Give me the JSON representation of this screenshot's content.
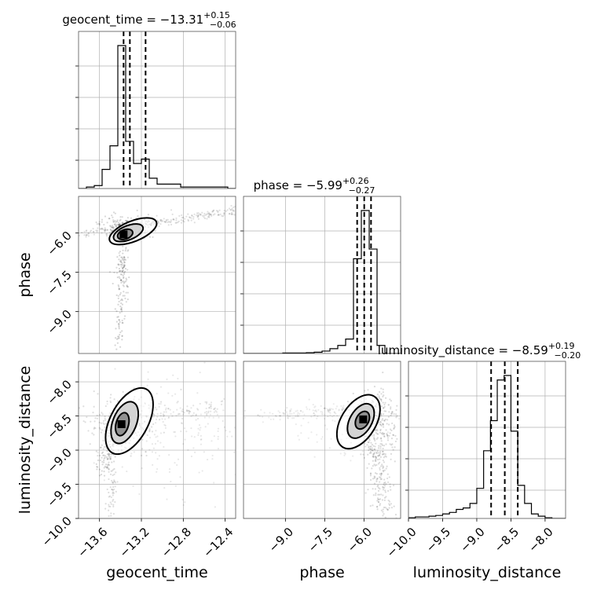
{
  "chart_data": {
    "type": "corner",
    "parameters": [
      {
        "name": "geocent_time",
        "range": [
          -13.8,
          -12.3
        ],
        "ticks": [
          -13.6,
          -13.2,
          -12.8,
          -12.4
        ],
        "tick_labels": [
          "−13.6",
          "−13.2",
          "−12.8",
          "−12.4"
        ]
      },
      {
        "name": "phase",
        "range": [
          -10.6,
          -4.6
        ],
        "ticks": [
          -9.0,
          -7.5,
          -6.0
        ],
        "tick_labels": [
          "−9.0",
          "−7.5",
          "−6.0"
        ]
      },
      {
        "name": "luminosity_distance",
        "range": [
          -10.0,
          -7.7
        ],
        "ticks": [
          -10.0,
          -9.5,
          -9.0,
          -8.5,
          -8.0
        ],
        "tick_labels": [
          "−10.0",
          "−9.5",
          "−9.0",
          "−8.5",
          "−8.0"
        ]
      }
    ],
    "titles": [
      {
        "name": "geocent_time",
        "value": "−13.31",
        "plus": "+0.15",
        "minus": "−0.06"
      },
      {
        "name": "phase",
        "value": "−5.99",
        "plus": "+0.26",
        "minus": "−0.27"
      },
      {
        "name": "luminosity_distance",
        "value": "−8.59",
        "plus": "+0.19",
        "minus": "−0.20"
      }
    ],
    "histograms": [
      {
        "param": "geocent_time",
        "bin_width": 0.075,
        "bins": [
          -13.8,
          -13.725,
          -13.65,
          -13.575,
          -13.5,
          -13.425,
          -13.35,
          -13.275,
          -13.2,
          -13.125,
          -13.05,
          -12.975,
          -12.9,
          -12.825,
          -12.75,
          -12.675,
          -12.6,
          -12.525,
          -12.45,
          -12.375
        ],
        "counts": [
          0,
          0.01,
          0.02,
          0.13,
          0.29,
          0.97,
          0.32,
          0.17,
          0.2,
          0.07,
          0.03,
          0.03,
          0.03,
          0.01,
          0.01,
          0.01,
          0.01,
          0.01,
          0.01,
          0
        ],
        "quantiles": [
          -13.37,
          -13.31,
          -13.16
        ]
      },
      {
        "param": "phase",
        "bin_width": 0.3,
        "bins": [
          -10.6,
          -10.3,
          -10.0,
          -9.7,
          -9.4,
          -9.1,
          -8.8,
          -8.5,
          -8.2,
          -7.9,
          -7.6,
          -7.3,
          -7.0,
          -6.7,
          -6.4,
          -6.1,
          -5.8,
          -5.5,
          -5.2,
          -4.9
        ],
        "counts": [
          0,
          0,
          0,
          0,
          0,
          0.003,
          0.003,
          0.003,
          0.005,
          0.008,
          0.015,
          0.03,
          0.05,
          0.09,
          0.59,
          0.89,
          0.65,
          0.05,
          0,
          0
        ],
        "quantiles": [
          -6.26,
          -5.99,
          -5.73
        ]
      },
      {
        "param": "luminosity_distance",
        "bin_width": 0.1,
        "bins": [
          -10.0,
          -9.9,
          -9.8,
          -9.7,
          -9.6,
          -9.5,
          -9.4,
          -9.3,
          -9.2,
          -9.1,
          -9.0,
          -8.9,
          -8.8,
          -8.7,
          -8.6,
          -8.5,
          -8.4,
          -8.3,
          -8.2,
          -8.1,
          -8.0,
          -7.9,
          -7.8
        ],
        "counts": [
          0.005,
          0.01,
          0.01,
          0.015,
          0.02,
          0.03,
          0.04,
          0.06,
          0.07,
          0.1,
          0.2,
          0.45,
          0.65,
          0.92,
          0.95,
          0.58,
          0.22,
          0.1,
          0.03,
          0.015,
          0.005,
          0,
          0
        ],
        "quantiles": [
          -8.79,
          -8.59,
          -8.4
        ]
      }
    ],
    "density_panels": [
      {
        "x": "geocent_time",
        "y": "phase",
        "peak": [
          -13.37,
          -6.05
        ],
        "contour_levels": [
          "inner",
          "middle",
          "outer"
        ]
      },
      {
        "x": "geocent_time",
        "y": "luminosity_distance",
        "peak": [
          -13.39,
          -8.62
        ],
        "contour_levels": [
          "inner",
          "middle",
          "outer"
        ]
      },
      {
        "x": "phase",
        "y": "luminosity_distance",
        "peak": [
          -6.03,
          -8.55
        ],
        "contour_levels": [
          "inner",
          "middle",
          "outer"
        ]
      }
    ],
    "grid": true
  }
}
